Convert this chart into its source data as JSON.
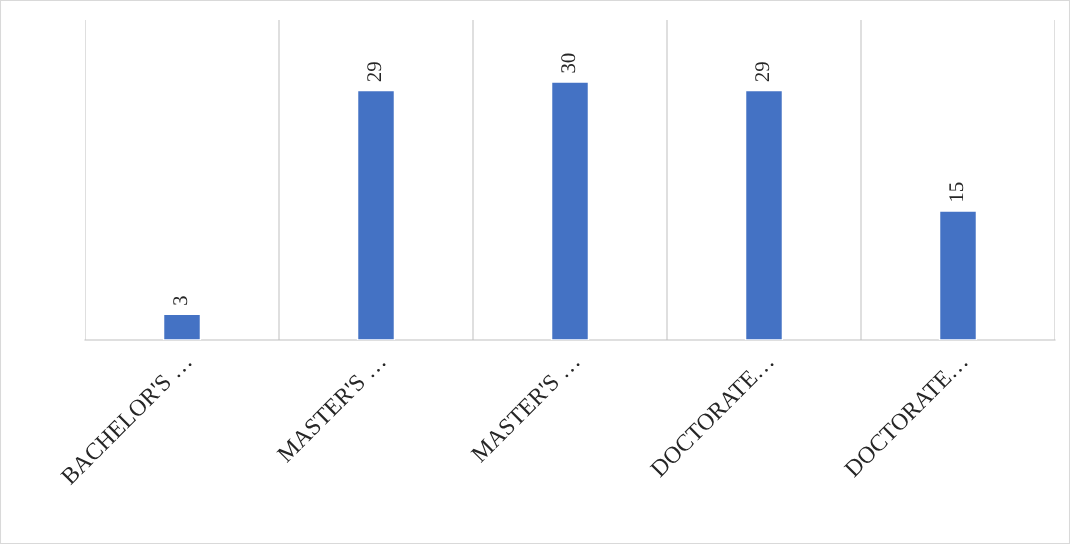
{
  "chart_data": {
    "type": "bar",
    "categories": [
      "BACHELOR'S …",
      "MASTER'S …",
      "MASTER'S …",
      "DOCTORATE…",
      "DOCTORATE…"
    ],
    "values": [
      3,
      29,
      30,
      29,
      15
    ],
    "color": "#4472c4",
    "data_labels": true,
    "grid": "x",
    "legend": false
  }
}
